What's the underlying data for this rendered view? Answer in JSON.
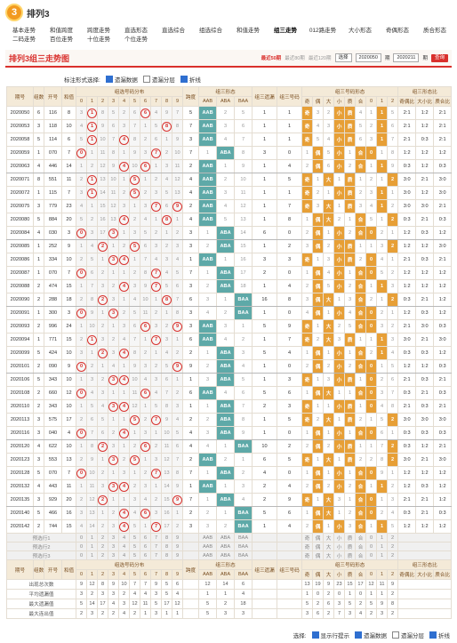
{
  "header": {
    "logo": "3",
    "title": "排列3"
  },
  "nav": [
    [
      "基本走势",
      "和值跨度",
      "跨度走势",
      "直选形态",
      "直选综合",
      "组选综合",
      "和值走势",
      "组三走势",
      "012路走势",
      "大小形态",
      "奇偶形态",
      "质合形态"
    ],
    [
      "二码走势",
      "百位走势",
      "十位走势",
      "个位走势"
    ]
  ],
  "panel": {
    "title": "排列3组三走势图",
    "recent": [
      "最近50期",
      "最近80期",
      "最近120期"
    ],
    "select": "选择",
    "from": "2020050",
    "to": "2020211",
    "unit": "期",
    "query": "查询"
  },
  "options": {
    "label": "标注形式选择:",
    "items": [
      {
        "text": "遗漏数据",
        "checked": true
      },
      {
        "text": "遗漏分层",
        "checked": false
      },
      {
        "text": "折线",
        "checked": true
      }
    ]
  },
  "table": {
    "headers": {
      "period": "期号",
      "count": "组数",
      "draw": "开号",
      "sum": "和值",
      "dist": "组选号码分布",
      "digits": [
        "0",
        "1",
        "2",
        "3",
        "4",
        "5",
        "6",
        "7",
        "8",
        "9"
      ],
      "span": "跨度",
      "form": "组三形态",
      "forms": [
        "AAB",
        "ABA",
        "BAA"
      ],
      "miss": "组三遗漏",
      "num": "组三号码",
      "shape": "组三号码形态",
      "shapes": [
        "奇",
        "偶",
        "大",
        "小",
        "质",
        "合",
        "0",
        "1",
        "2"
      ],
      "ratio": "组三形态比",
      "ratios": [
        "奇偶比",
        "大小比",
        "质合比"
      ]
    },
    "rows": [
      [
        "2020050",
        6,
        "116",
        8,
        3,
        "1",
        8,
        5,
        2,
        6,
        "6",
        4,
        9,
        7,
        5,
        "AAB",
        2,
        5,
        1,
        1,
        "奇",
        3,
        2,
        "小",
        "质",
        4,
        1,
        "1",
        5,
        "2:1",
        "1:2",
        "2:1"
      ],
      [
        "2020053",
        3,
        "118",
        10,
        4,
        "1",
        9,
        6,
        3,
        7,
        1,
        5,
        "8",
        8,
        7,
        "AAB",
        3,
        6,
        1,
        1,
        "奇",
        4,
        3,
        "小",
        "质",
        5,
        2,
        "1",
        6,
        "2:1",
        "1:2",
        "2:1"
      ],
      [
        "2020058",
        5,
        "114",
        6,
        5,
        "1",
        10,
        7,
        "4",
        8,
        2,
        6,
        1,
        9,
        3,
        "AAB",
        4,
        7,
        1,
        1,
        "奇",
        5,
        4,
        "小",
        "质",
        6,
        3,
        "1",
        7,
        "2:1",
        "0:3",
        "2:1"
      ],
      [
        "2020059",
        1,
        "070",
        7,
        "0",
        1,
        11,
        8,
        1,
        9,
        3,
        "7",
        2,
        10,
        7,
        1,
        "ABA",
        8,
        3,
        0,
        1,
        "偶",
        5,
        "小",
        1,
        "合",
        "0",
        1,
        8,
        "1:2",
        "1:2",
        "1:2"
      ],
      [
        "2020063",
        4,
        "446",
        14,
        1,
        2,
        12,
        9,
        "4",
        10,
        "6",
        1,
        3,
        11,
        2,
        "AAB",
        1,
        9,
        1,
        4,
        2,
        "偶",
        6,
        "小",
        2,
        "合",
        1,
        "1",
        9,
        "0:3",
        "1:2",
        "0:3"
      ],
      [
        "2020071",
        8,
        "551",
        11,
        2,
        "1",
        13,
        10,
        1,
        "5",
        1,
        2,
        4,
        12,
        4,
        "AAB",
        2,
        10,
        1,
        5,
        "奇",
        1,
        "大",
        1,
        "质",
        1,
        2,
        1,
        "2",
        "3:0",
        "2:1",
        "3:0"
      ],
      [
        "2020072",
        1,
        "115",
        7,
        3,
        "1",
        14,
        11,
        2,
        "5",
        2,
        3,
        5,
        13,
        4,
        "AAB",
        3,
        11,
        1,
        1,
        "奇",
        2,
        1,
        "小",
        "质",
        2,
        3,
        "1",
        1,
        "3:0",
        "1:2",
        "3:0"
      ],
      [
        "2020075",
        3,
        "779",
        23,
        4,
        1,
        15,
        12,
        3,
        1,
        3,
        "7",
        6,
        "9",
        2,
        "AAB",
        4,
        12,
        1,
        7,
        "奇",
        3,
        "大",
        1,
        "质",
        3,
        4,
        "1",
        2,
        "3:0",
        "3:0",
        "2:1"
      ],
      [
        "2020080",
        5,
        "884",
        20,
        5,
        2,
        16,
        13,
        "4",
        2,
        4,
        1,
        "8",
        1,
        4,
        "AAB",
        5,
        13,
        1,
        8,
        1,
        "偶",
        "大",
        2,
        1,
        "合",
        5,
        1,
        "2",
        "0:3",
        "2:1",
        "0:3"
      ],
      [
        "2020084",
        4,
        "030",
        3,
        "0",
        3,
        17,
        "3",
        1,
        3,
        5,
        2,
        1,
        2,
        3,
        1,
        "ABA",
        14,
        6,
        0,
        2,
        "偶",
        1,
        "小",
        2,
        "合",
        "0",
        2,
        1,
        "1:2",
        "0:3",
        "1:2"
      ],
      [
        "2020085",
        1,
        "252",
        9,
        1,
        4,
        "2",
        1,
        2,
        "5",
        6,
        3,
        2,
        3,
        3,
        2,
        "ABA",
        15,
        1,
        2,
        3,
        "偶",
        2,
        "小",
        "质",
        1,
        1,
        3,
        "2",
        "1:2",
        "1:2",
        "3:0"
      ],
      [
        "2020086",
        1,
        "334",
        10,
        2,
        5,
        1,
        "3",
        "4",
        1,
        7,
        4,
        3,
        4,
        1,
        "AAB",
        1,
        16,
        3,
        3,
        "奇",
        1,
        3,
        "小",
        "质",
        2,
        "0",
        4,
        1,
        "2:1",
        "0:3",
        "2:1"
      ],
      [
        "2020087",
        1,
        "070",
        7,
        "0",
        6,
        2,
        1,
        1,
        2,
        8,
        "7",
        4,
        5,
        7,
        1,
        "ABA",
        17,
        2,
        0,
        1,
        "偶",
        4,
        "小",
        1,
        "合",
        "0",
        5,
        2,
        "1:2",
        "1:2",
        "1:2"
      ],
      [
        "2020088",
        2,
        "474",
        15,
        1,
        7,
        3,
        2,
        "4",
        3,
        9,
        "7",
        5,
        6,
        3,
        2,
        "ABA",
        18,
        1,
        4,
        2,
        "偶",
        5,
        "小",
        2,
        "合",
        1,
        "1",
        3,
        "1:2",
        "1:2",
        "1:2"
      ],
      [
        "2020090",
        2,
        "288",
        18,
        2,
        8,
        "2",
        3,
        1,
        4,
        10,
        1,
        "8",
        7,
        6,
        3,
        1,
        "BAA",
        16,
        8,
        3,
        "偶",
        "大",
        1,
        3,
        "合",
        2,
        1,
        "2",
        "0:3",
        "2:1",
        "1:2"
      ],
      [
        "2020091",
        1,
        "300",
        3,
        "0",
        9,
        1,
        "3",
        2,
        5,
        11,
        2,
        1,
        8,
        3,
        4,
        2,
        "BAA",
        1,
        0,
        4,
        "偶",
        1,
        "小",
        4,
        "合",
        "0",
        2,
        1,
        "1:2",
        "0:3",
        "1:2"
      ],
      [
        "2020093",
        2,
        "996",
        24,
        1,
        10,
        2,
        1,
        3,
        6,
        "6",
        3,
        2,
        "9",
        3,
        "AAB",
        3,
        1,
        5,
        9,
        "奇",
        1,
        "大",
        2,
        5,
        "合",
        "0",
        3,
        2,
        "2:1",
        "3:0",
        "0:3"
      ],
      [
        "2020094",
        1,
        "771",
        15,
        2,
        "1",
        3,
        2,
        4,
        7,
        1,
        "7",
        3,
        1,
        6,
        "AAB",
        4,
        2,
        1,
        7,
        "奇",
        2,
        "大",
        3,
        "质",
        1,
        1,
        "1",
        3,
        "3:0",
        "2:1",
        "3:0"
      ],
      [
        "2020099",
        5,
        "424",
        10,
        3,
        1,
        "2",
        3,
        "4",
        8,
        2,
        1,
        4,
        2,
        2,
        1,
        "ABA",
        3,
        5,
        4,
        1,
        "偶",
        1,
        "小",
        1,
        "合",
        2,
        "1",
        4,
        "0:3",
        "0:3",
        "1:2"
      ],
      [
        "2020101",
        2,
        "090",
        9,
        "0",
        2,
        1,
        4,
        1,
        9,
        3,
        2,
        5,
        "9",
        9,
        2,
        "ABA",
        4,
        1,
        0,
        2,
        "偶",
        2,
        "小",
        2,
        "合",
        "0",
        1,
        5,
        "1:2",
        "1:2",
        "0:3"
      ],
      [
        "2020106",
        5,
        "343",
        10,
        1,
        3,
        2,
        "3",
        "4",
        10,
        4,
        3,
        6,
        1,
        1,
        3,
        "ABA",
        5,
        1,
        3,
        "奇",
        1,
        3,
        "小",
        "质",
        1,
        "0",
        2,
        6,
        "2:1",
        "0:3",
        "2:1"
      ],
      [
        "2020108",
        2,
        "660",
        12,
        "0",
        4,
        3,
        1,
        1,
        11,
        "6",
        4,
        7,
        2,
        6,
        "AAB",
        4,
        6,
        5,
        6,
        1,
        "偶",
        "大",
        1,
        1,
        "合",
        "0",
        3,
        7,
        "0:3",
        "2:1",
        "0:3"
      ],
      [
        "2020110",
        2,
        "343",
        10,
        1,
        5,
        4,
        "3",
        "4",
        12,
        1,
        5,
        8,
        3,
        1,
        1,
        "ABA",
        7,
        2,
        3,
        "奇",
        1,
        1,
        "小",
        "质",
        1,
        "0",
        4,
        8,
        "2:1",
        "0:3",
        "2:1"
      ],
      [
        "2020113",
        3,
        "575",
        17,
        2,
        6,
        5,
        1,
        1,
        "5",
        2,
        "7",
        9,
        4,
        2,
        2,
        "ABA",
        8,
        1,
        5,
        "奇",
        2,
        "大",
        1,
        "质",
        2,
        1,
        5,
        "2",
        "3:0",
        "3:0",
        "3:0"
      ],
      [
        "2020116",
        3,
        "040",
        4,
        "0",
        7,
        6,
        2,
        "4",
        1,
        3,
        1,
        10,
        5,
        4,
        3,
        "ABA",
        9,
        1,
        0,
        1,
        "偶",
        1,
        "小",
        1,
        "合",
        "0",
        6,
        1,
        "0:3",
        "0:3",
        "0:3"
      ],
      [
        "2020120",
        4,
        "622",
        10,
        1,
        8,
        "2",
        3,
        1,
        2,
        "6",
        2,
        11,
        6,
        4,
        4,
        1,
        "BAA",
        10,
        2,
        2,
        "偶",
        2,
        "小",
        "质",
        1,
        1,
        7,
        "2",
        "0:3",
        "1:2",
        "2:1"
      ],
      [
        "2020123",
        3,
        "553",
        13,
        2,
        9,
        1,
        "3",
        2,
        "5",
        1,
        3,
        12,
        7,
        2,
        "AAB",
        2,
        1,
        6,
        5,
        "奇",
        1,
        "大",
        1,
        "质",
        2,
        2,
        8,
        "2",
        "3:0",
        "2:1",
        "3:0"
      ],
      [
        "2020128",
        5,
        "070",
        7,
        "0",
        10,
        2,
        1,
        3,
        1,
        2,
        "7",
        13,
        8,
        7,
        1,
        "ABA",
        2,
        4,
        0,
        1,
        "偶",
        1,
        "小",
        1,
        "合",
        "0",
        9,
        1,
        "1:2",
        "1:2",
        "1:2"
      ],
      [
        "2020132",
        4,
        "443",
        11,
        1,
        11,
        3,
        "3",
        "4",
        2,
        3,
        1,
        14,
        9,
        1,
        "AAB",
        1,
        3,
        2,
        4,
        2,
        "偶",
        2,
        "小",
        2,
        "合",
        1,
        "1",
        2,
        "1:2",
        "0:3",
        "1:2"
      ],
      [
        "2020135",
        3,
        "929",
        20,
        2,
        12,
        "2",
        1,
        1,
        3,
        4,
        2,
        15,
        "9",
        7,
        1,
        "ABA",
        4,
        2,
        9,
        "奇",
        1,
        "大",
        3,
        1,
        "合",
        "0",
        1,
        3,
        "2:1",
        "2:1",
        "1:2"
      ],
      [
        "2020140",
        5,
        "466",
        16,
        3,
        13,
        1,
        2,
        "4",
        4,
        "6",
        3,
        16,
        1,
        2,
        2,
        1,
        "BAA",
        5,
        6,
        1,
        "偶",
        "大",
        1,
        2,
        "合",
        "0",
        2,
        4,
        "0:3",
        "2:1",
        "0:3"
      ],
      [
        "2020142",
        2,
        "744",
        15,
        4,
        14,
        2,
        3,
        "4",
        5,
        1,
        "7",
        17,
        2,
        3,
        3,
        2,
        "BAA",
        1,
        4,
        2,
        "偶",
        1,
        "小",
        3,
        "合",
        1,
        "1",
        5,
        "1:2",
        "1:2",
        "1:2"
      ]
    ],
    "preselect": [
      "预选行1",
      "预选行2",
      "预选行3"
    ],
    "stats": [
      {
        "label": "出现总次数",
        "dist": [
          9,
          12,
          8,
          9,
          10,
          7,
          7,
          9,
          5,
          6
        ],
        "form": [
          12,
          14,
          6
        ],
        "shape": [
          13,
          19,
          9,
          23,
          15,
          17,
          12,
          11,
          9
        ]
      },
      {
        "label": "平均遗漏值",
        "dist": [
          3,
          2,
          3,
          3,
          2,
          4,
          4,
          3,
          5,
          4
        ],
        "form": [
          1,
          1,
          4
        ],
        "shape": [
          1,
          0,
          2,
          0,
          1,
          0,
          1,
          1,
          2
        ]
      },
      {
        "label": "最大遗漏值",
        "dist": [
          5,
          14,
          17,
          4,
          3,
          12,
          11,
          5,
          17,
          12
        ],
        "form": [
          5,
          2,
          18
        ],
        "shape": [
          5,
          2,
          6,
          3,
          5,
          2,
          5,
          9,
          8
        ]
      },
      {
        "label": "最大连出值",
        "dist": [
          2,
          3,
          2,
          2,
          4,
          2,
          1,
          3,
          1,
          1
        ],
        "form": [
          5,
          3,
          3
        ],
        "shape": [
          3,
          6,
          2,
          7,
          3,
          4,
          2,
          3,
          2
        ]
      }
    ]
  },
  "footer": {
    "label": "选择:",
    "items": [
      {
        "text": "显示行提示",
        "checked": true
      },
      {
        "text": "遗漏数据",
        "checked": true
      },
      {
        "text": "遗漏分层",
        "checked": false
      },
      {
        "text": "折线",
        "checked": true
      }
    ]
  }
}
